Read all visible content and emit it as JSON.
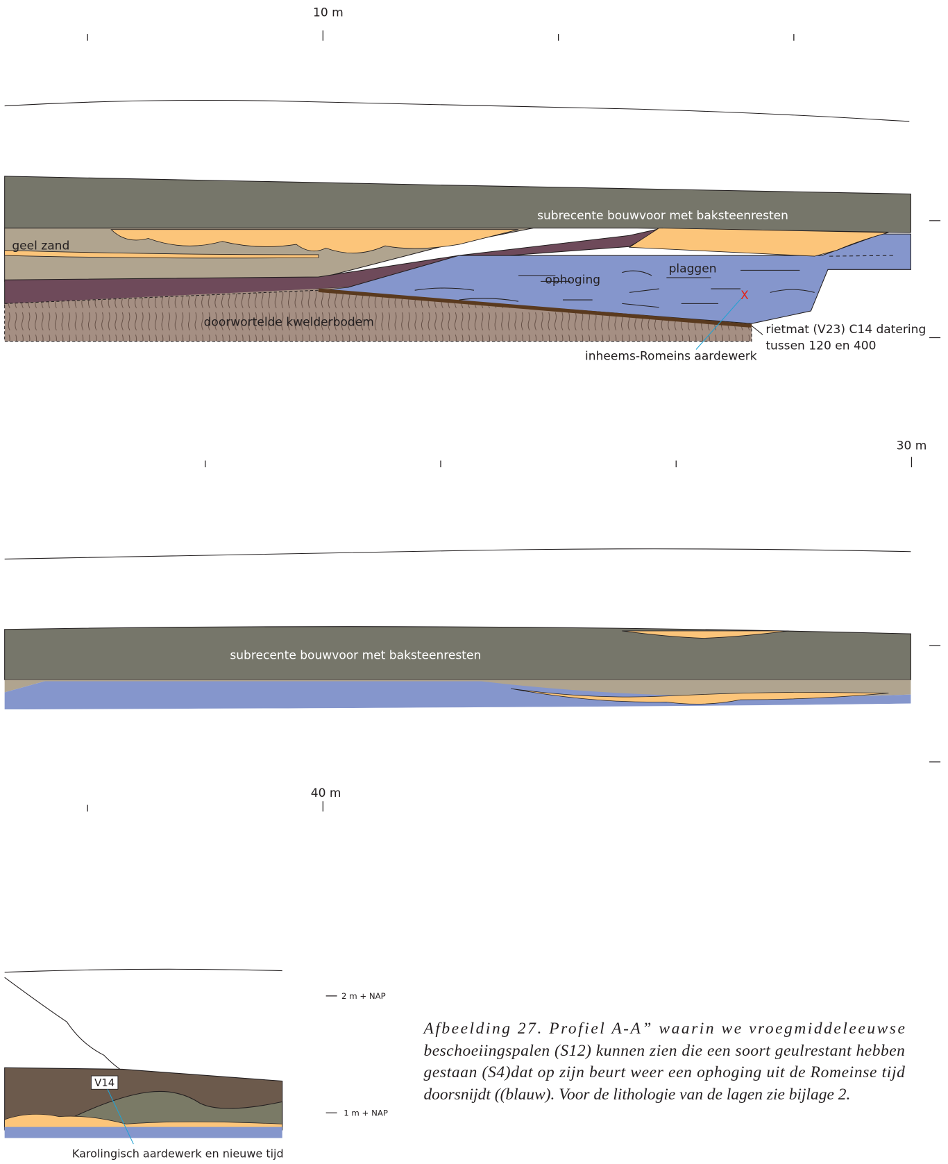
{
  "panel_1": {
    "scale_label": "10 m",
    "labels": [
      "subrecente bouwvoor met baksteenresten",
      "geel zand",
      "ophoging",
      "plaggen",
      "X",
      "doorwortelde kwelderbodem",
      "rietmat (V23) C14 datering",
      "tussen 120 en 400",
      "inheems-Romeins aardewerk"
    ]
  },
  "panel_2": {
    "scale_label": "30 m",
    "labels": [
      "subrecente bouwvoor met baksteenresten"
    ]
  },
  "panel_3": {
    "scale_label": "40 m",
    "labels": [
      "V14",
      "Karolingisch aardewerk en nieuwe tijd"
    ],
    "levels": [
      "2 m + NAP",
      "1 m + NAP"
    ]
  },
  "caption": [
    "Afbeelding 27. Profiel A-A” waarin we vroegmiddeleeuwse",
    "beschoeiingspalen (S12) kunnen zien die een soort geulrestant hebben",
    "gestaan (S4)dat op zijn beurt weer een ophoging uit de Romeinse tijd",
    "doorsnijdt ((blauw). Voor de lithologie van de lagen zie bijlage 2."
  ]
}
